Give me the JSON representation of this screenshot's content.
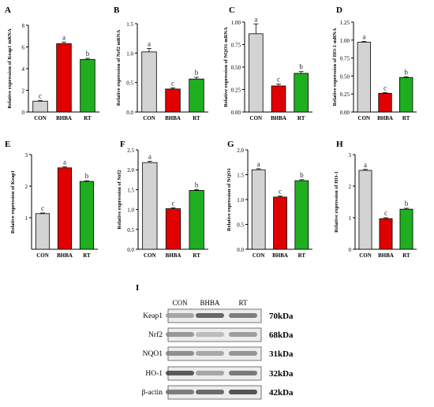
{
  "figure": {
    "panel_I_label": "I",
    "blot": {
      "lanes": [
        "CON",
        "BHBA",
        "RT"
      ],
      "rows": [
        {
          "protein": "Keap1",
          "size": "70kDa"
        },
        {
          "protein": "Nrf2",
          "size": "68kDa"
        },
        {
          "protein": "NQO1",
          "size": "31kDa"
        },
        {
          "protein": "HO-1",
          "size": "32kDa"
        },
        {
          "protein": "β-actin",
          "size": "42kDa"
        }
      ]
    }
  },
  "colors": {
    "CON": "#d3d3d3",
    "BHBA": "#e00000",
    "RT": "#1fae1f"
  },
  "chart_data": [
    {
      "panel": "A",
      "type": "bar",
      "categories": [
        "CON",
        "BHBA",
        "RT"
      ],
      "values": [
        1.0,
        6.3,
        4.85
      ],
      "errors": [
        0.05,
        0.15,
        0.1
      ],
      "letters": [
        "c",
        "a",
        "b"
      ],
      "ylabel": "Relative expression of Keap1 mRNA",
      "ylim": [
        0,
        8
      ],
      "yticks": [
        0,
        2,
        4,
        6,
        8
      ]
    },
    {
      "panel": "B",
      "type": "bar",
      "categories": [
        "CON",
        "BHBA",
        "RT"
      ],
      "values": [
        1.02,
        0.39,
        0.56
      ],
      "errors": [
        0.06,
        0.02,
        0.03
      ],
      "letters": [
        "a",
        "c",
        "b"
      ],
      "ylabel": "Relative expression of Nrf2 mRNA",
      "ylim": [
        0,
        1.5
      ],
      "yticks": [
        0.0,
        0.5,
        1.0,
        1.5
      ]
    },
    {
      "panel": "C",
      "type": "bar",
      "categories": [
        "CON",
        "BHBA",
        "RT"
      ],
      "values": [
        0.87,
        0.29,
        0.43
      ],
      "errors": [
        0.11,
        0.02,
        0.02
      ],
      "letters": [
        "a",
        "c",
        "b"
      ],
      "ylabel": "Relative expression of NQO1 mRNA",
      "ylim": [
        0,
        1.0
      ],
      "yticks": [
        0.0,
        0.25,
        0.5,
        0.75,
        1.0
      ]
    },
    {
      "panel": "D",
      "type": "bar",
      "categories": [
        "CON",
        "BHBA",
        "RT"
      ],
      "values": [
        0.97,
        0.26,
        0.48
      ],
      "errors": [
        0.01,
        0.01,
        0.01
      ],
      "letters": [
        "a",
        "c",
        "b"
      ],
      "ylabel": "Relative expression of HO-1 mRNA",
      "ylim": [
        0,
        1.25
      ],
      "yticks": [
        0.0,
        0.25,
        0.5,
        0.75,
        1.0,
        1.25
      ]
    },
    {
      "panel": "E",
      "type": "bar",
      "categories": [
        "CON",
        "BHBA",
        "RT"
      ],
      "values": [
        1.13,
        2.58,
        2.15
      ],
      "errors": [
        0.02,
        0.03,
        0.02
      ],
      "letters": [
        "c",
        "a",
        "b"
      ],
      "ylabel": "Relative expression of Keap1",
      "ylim": [
        0,
        3
      ],
      "yticks": [
        1,
        2,
        3
      ]
    },
    {
      "panel": "F",
      "type": "bar",
      "categories": [
        "CON",
        "BHBA",
        "RT"
      ],
      "values": [
        2.18,
        1.02,
        1.48
      ],
      "errors": [
        0.03,
        0.02,
        0.02
      ],
      "letters": [
        "a",
        "c",
        "b"
      ],
      "ylabel": "Relative expression of Nrf2",
      "ylim": [
        0,
        2.5
      ],
      "yticks": [
        0.0,
        0.5,
        1.0,
        1.5,
        2.0,
        2.5
      ]
    },
    {
      "panel": "G",
      "type": "bar",
      "categories": [
        "CON",
        "BHBA",
        "RT"
      ],
      "values": [
        1.6,
        1.05,
        1.38
      ],
      "errors": [
        0.02,
        0.02,
        0.02
      ],
      "letters": [
        "a",
        "c",
        "b"
      ],
      "ylabel": "Relative expression of NQO1",
      "ylim": [
        0,
        2.0
      ],
      "yticks": [
        0.0,
        0.5,
        1.0,
        1.5,
        2.0
      ]
    },
    {
      "panel": "H",
      "type": "bar",
      "categories": [
        "CON",
        "BHBA",
        "RT"
      ],
      "values": [
        2.5,
        0.97,
        1.27
      ],
      "errors": [
        0.03,
        0.03,
        0.03
      ],
      "letters": [
        "a",
        "c",
        "b"
      ],
      "ylabel": "Relative expression of HO-1",
      "ylim": [
        0,
        3
      ],
      "yticks": [
        0,
        1,
        2,
        3
      ]
    }
  ]
}
